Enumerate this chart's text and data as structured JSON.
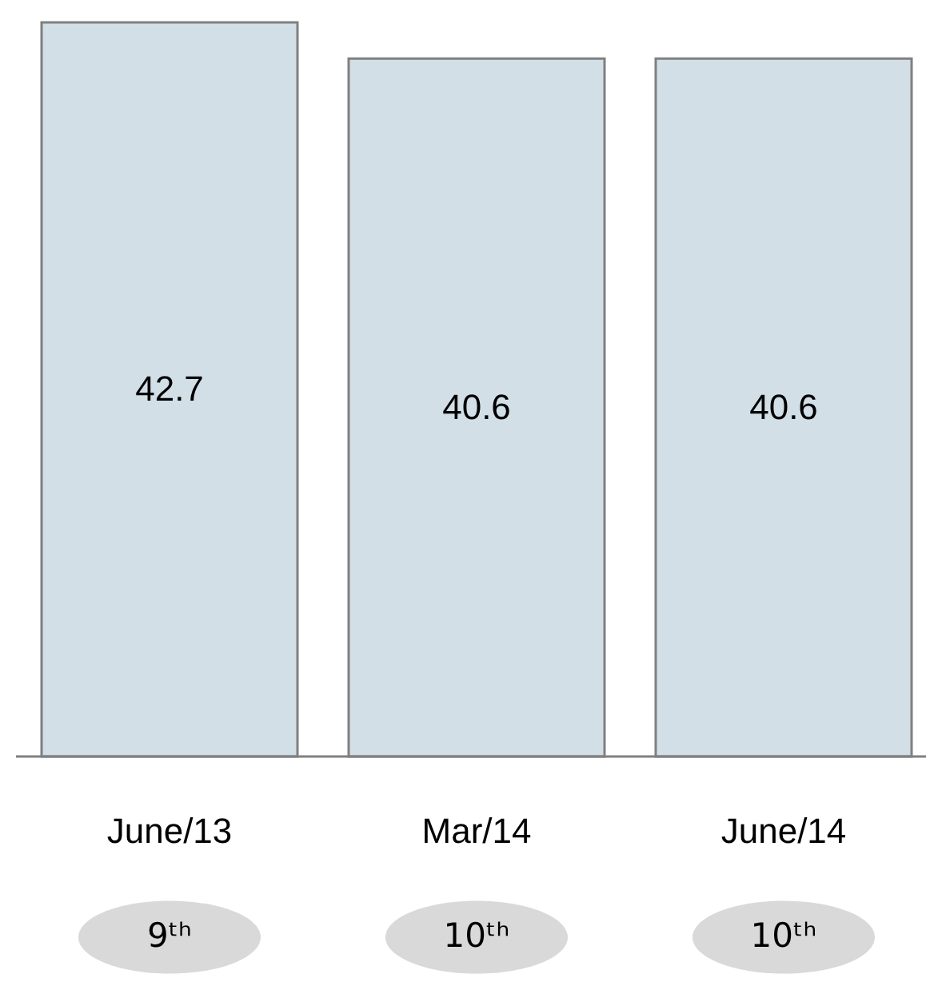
{
  "chart_data": {
    "type": "bar",
    "categories": [
      "June/13",
      "Mar/14",
      "June/14"
    ],
    "values": [
      42.7,
      40.6,
      40.6
    ],
    "color": "#d3dfe6",
    "data_labels": true,
    "annotations": [
      "9ᵗʰ",
      "10ᵗʰ",
      "10ᵗʰ"
    ]
  }
}
